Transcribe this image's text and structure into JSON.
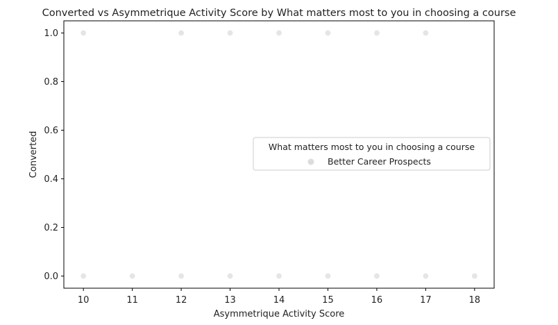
{
  "chart_data": {
    "type": "scatter",
    "title": "Converted vs Asymmetrique Activity Score by What matters most to you in choosing a course",
    "xlabel": "Asymmetrique Activity Score",
    "ylabel": "Converted",
    "xlim": [
      9.6,
      18.4
    ],
    "ylim": [
      -0.05,
      1.05
    ],
    "xticks": [
      10,
      11,
      12,
      13,
      14,
      15,
      16,
      17,
      18
    ],
    "yticks": [
      0.0,
      0.2,
      0.4,
      0.6,
      0.8,
      1.0
    ],
    "ytick_labels": [
      "0.0",
      "0.2",
      "0.4",
      "0.6",
      "0.8",
      "1.0"
    ],
    "grid": false,
    "legend": {
      "title": "What matters most to you in choosing a course",
      "placement": "center-right",
      "entries": [
        "Better Career Prospects"
      ]
    },
    "series": [
      {
        "name": "Better Career Prospects",
        "color": "#dcdcdc",
        "points": [
          {
            "x": 10,
            "y": 1
          },
          {
            "x": 12,
            "y": 1
          },
          {
            "x": 13,
            "y": 1
          },
          {
            "x": 14,
            "y": 1
          },
          {
            "x": 15,
            "y": 1
          },
          {
            "x": 16,
            "y": 1
          },
          {
            "x": 17,
            "y": 1
          },
          {
            "x": 10,
            "y": 0
          },
          {
            "x": 11,
            "y": 0
          },
          {
            "x": 12,
            "y": 0
          },
          {
            "x": 13,
            "y": 0
          },
          {
            "x": 14,
            "y": 0
          },
          {
            "x": 15,
            "y": 0
          },
          {
            "x": 16,
            "y": 0
          },
          {
            "x": 17,
            "y": 0
          },
          {
            "x": 18,
            "y": 0
          }
        ]
      }
    ]
  }
}
